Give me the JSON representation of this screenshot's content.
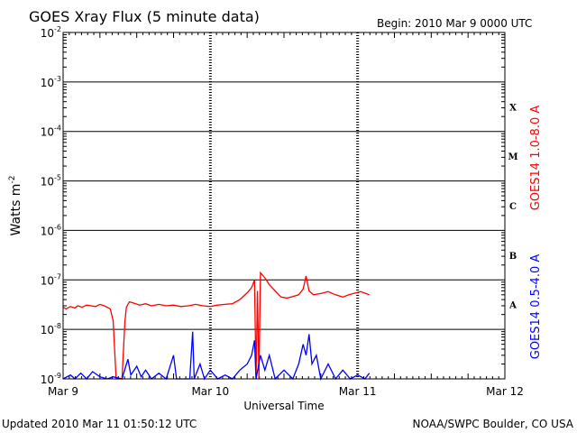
{
  "chart_data": {
    "type": "line",
    "title": "GOES Xray Flux (5 minute data)",
    "begin_label": "Begin:  2010 Mar 9 0000 UTC",
    "xlabel": "Universal Time",
    "ylabel": "Watts m",
    "ylabel_sup": "-2",
    "y_scale": "log",
    "ylim": [
      1e-09,
      0.01
    ],
    "xlim_days": [
      0,
      3
    ],
    "x_ticks": [
      {
        "day": 0,
        "label": "Mar 9"
      },
      {
        "day": 1,
        "label": "Mar 10"
      },
      {
        "day": 2,
        "label": "Mar 11"
      },
      {
        "day": 3,
        "label": "Mar 12"
      }
    ],
    "y_ticks": [
      {
        "exp": -2,
        "label": "10",
        "sup": "-2"
      },
      {
        "exp": -3,
        "label": "10",
        "sup": "-3"
      },
      {
        "exp": -4,
        "label": "10",
        "sup": "-4"
      },
      {
        "exp": -5,
        "label": "10",
        "sup": "-5"
      },
      {
        "exp": -6,
        "label": "10",
        "sup": "-6"
      },
      {
        "exp": -7,
        "label": "10",
        "sup": "-7"
      },
      {
        "exp": -8,
        "label": "10",
        "sup": "-8"
      },
      {
        "exp": -9,
        "label": "10",
        "sup": "-9"
      }
    ],
    "flare_classes": [
      {
        "label": "X",
        "exp": -3.5
      },
      {
        "label": "M",
        "exp": -4.5
      },
      {
        "label": "C",
        "exp": -5.5
      },
      {
        "label": "B",
        "exp": -6.5
      },
      {
        "label": "A",
        "exp": -7.5
      }
    ],
    "grid": true,
    "series": [
      {
        "name": "GOES14 1.0-8.0 A",
        "color": "#ff0000",
        "points": [
          [
            0.0,
            2.8e-08
          ],
          [
            0.02,
            2.6e-08
          ],
          [
            0.05,
            2.9e-08
          ],
          [
            0.08,
            2.7e-08
          ],
          [
            0.1,
            3e-08
          ],
          [
            0.13,
            2.8e-08
          ],
          [
            0.16,
            3.1e-08
          ],
          [
            0.19,
            3e-08
          ],
          [
            0.22,
            2.9e-08
          ],
          [
            0.25,
            3.2e-08
          ],
          [
            0.28,
            3e-08
          ],
          [
            0.32,
            2.6e-08
          ],
          [
            0.34,
            1.5e-08
          ],
          [
            0.36,
            1e-09
          ],
          [
            0.4,
            1e-09
          ],
          [
            0.42,
            1.5e-08
          ],
          [
            0.43,
            2.8e-08
          ],
          [
            0.45,
            3.6e-08
          ],
          [
            0.48,
            3.4e-08
          ],
          [
            0.52,
            3.1e-08
          ],
          [
            0.56,
            3.3e-08
          ],
          [
            0.6,
            3e-08
          ],
          [
            0.65,
            3.2e-08
          ],
          [
            0.7,
            3e-08
          ],
          [
            0.75,
            3.1e-08
          ],
          [
            0.8,
            2.9e-08
          ],
          [
            0.85,
            3e-08
          ],
          [
            0.9,
            3.2e-08
          ],
          [
            0.95,
            3e-08
          ],
          [
            1.0,
            2.9e-08
          ],
          [
            1.05,
            3.1e-08
          ],
          [
            1.1,
            3.2e-08
          ],
          [
            1.15,
            3.3e-08
          ],
          [
            1.2,
            4e-08
          ],
          [
            1.25,
            5.5e-08
          ],
          [
            1.28,
            7e-08
          ],
          [
            1.3,
            1e-07
          ],
          [
            1.31,
            1e-09
          ],
          [
            1.32,
            6e-08
          ],
          [
            1.33,
            1e-09
          ],
          [
            1.34,
            1.4e-07
          ],
          [
            1.37,
            1.1e-07
          ],
          [
            1.4,
            8e-08
          ],
          [
            1.44,
            6e-08
          ],
          [
            1.48,
            4.5e-08
          ],
          [
            1.52,
            4.3e-08
          ],
          [
            1.56,
            4.6e-08
          ],
          [
            1.6,
            5e-08
          ],
          [
            1.63,
            6.5e-08
          ],
          [
            1.65,
            1.2e-07
          ],
          [
            1.67,
            6e-08
          ],
          [
            1.7,
            5e-08
          ],
          [
            1.75,
            5.3e-08
          ],
          [
            1.8,
            5.8e-08
          ],
          [
            1.85,
            5e-08
          ],
          [
            1.9,
            4.5e-08
          ],
          [
            1.94,
            5e-08
          ],
          [
            1.98,
            5.4e-08
          ],
          [
            2.02,
            5.8e-08
          ],
          [
            2.05,
            5.4e-08
          ],
          [
            2.08,
            5e-08
          ]
        ]
      },
      {
        "name": "GOES14 0.5-4.0 A",
        "color": "#0000ff",
        "points": [
          [
            0.0,
            1e-09
          ],
          [
            0.05,
            1.2e-09
          ],
          [
            0.08,
            1e-09
          ],
          [
            0.12,
            1.3e-09
          ],
          [
            0.16,
            1e-09
          ],
          [
            0.2,
            1.4e-09
          ],
          [
            0.25,
            1.1e-09
          ],
          [
            0.3,
            1e-09
          ],
          [
            0.34,
            1.1e-09
          ],
          [
            0.4,
            1e-09
          ],
          [
            0.44,
            2.5e-09
          ],
          [
            0.46,
            1.2e-09
          ],
          [
            0.5,
            1.8e-09
          ],
          [
            0.53,
            1.1e-09
          ],
          [
            0.56,
            1.5e-09
          ],
          [
            0.6,
            1e-09
          ],
          [
            0.65,
            1.3e-09
          ],
          [
            0.7,
            1e-09
          ],
          [
            0.75,
            3e-09
          ],
          [
            0.77,
            1e-09
          ],
          [
            0.86,
            1e-09
          ],
          [
            0.88,
            9e-09
          ],
          [
            0.89,
            1e-09
          ],
          [
            0.93,
            2e-09
          ],
          [
            0.96,
            1e-09
          ],
          [
            1.0,
            1.5e-09
          ],
          [
            1.05,
            1e-09
          ],
          [
            1.1,
            1.2e-09
          ],
          [
            1.15,
            1e-09
          ],
          [
            1.2,
            1.5e-09
          ],
          [
            1.25,
            2e-09
          ],
          [
            1.28,
            3e-09
          ],
          [
            1.3,
            6e-09
          ],
          [
            1.31,
            1e-09
          ],
          [
            1.34,
            3e-09
          ],
          [
            1.37,
            1.5e-09
          ],
          [
            1.4,
            3e-09
          ],
          [
            1.44,
            1e-09
          ],
          [
            1.5,
            1.5e-09
          ],
          [
            1.56,
            1e-09
          ],
          [
            1.6,
            2e-09
          ],
          [
            1.63,
            5e-09
          ],
          [
            1.65,
            3e-09
          ],
          [
            1.67,
            8e-09
          ],
          [
            1.69,
            2e-09
          ],
          [
            1.72,
            3e-09
          ],
          [
            1.75,
            1e-09
          ],
          [
            1.8,
            2e-09
          ],
          [
            1.85,
            1e-09
          ],
          [
            1.9,
            1.5e-09
          ],
          [
            1.95,
            1e-09
          ],
          [
            2.0,
            1.2e-09
          ],
          [
            2.05,
            1e-09
          ],
          [
            2.08,
            1.3e-09
          ]
        ]
      }
    ]
  },
  "footer": {
    "updated": "Updated 2010 Mar 11 01:50:12 UTC",
    "source": "NOAA/SWPC Boulder, CO USA"
  }
}
